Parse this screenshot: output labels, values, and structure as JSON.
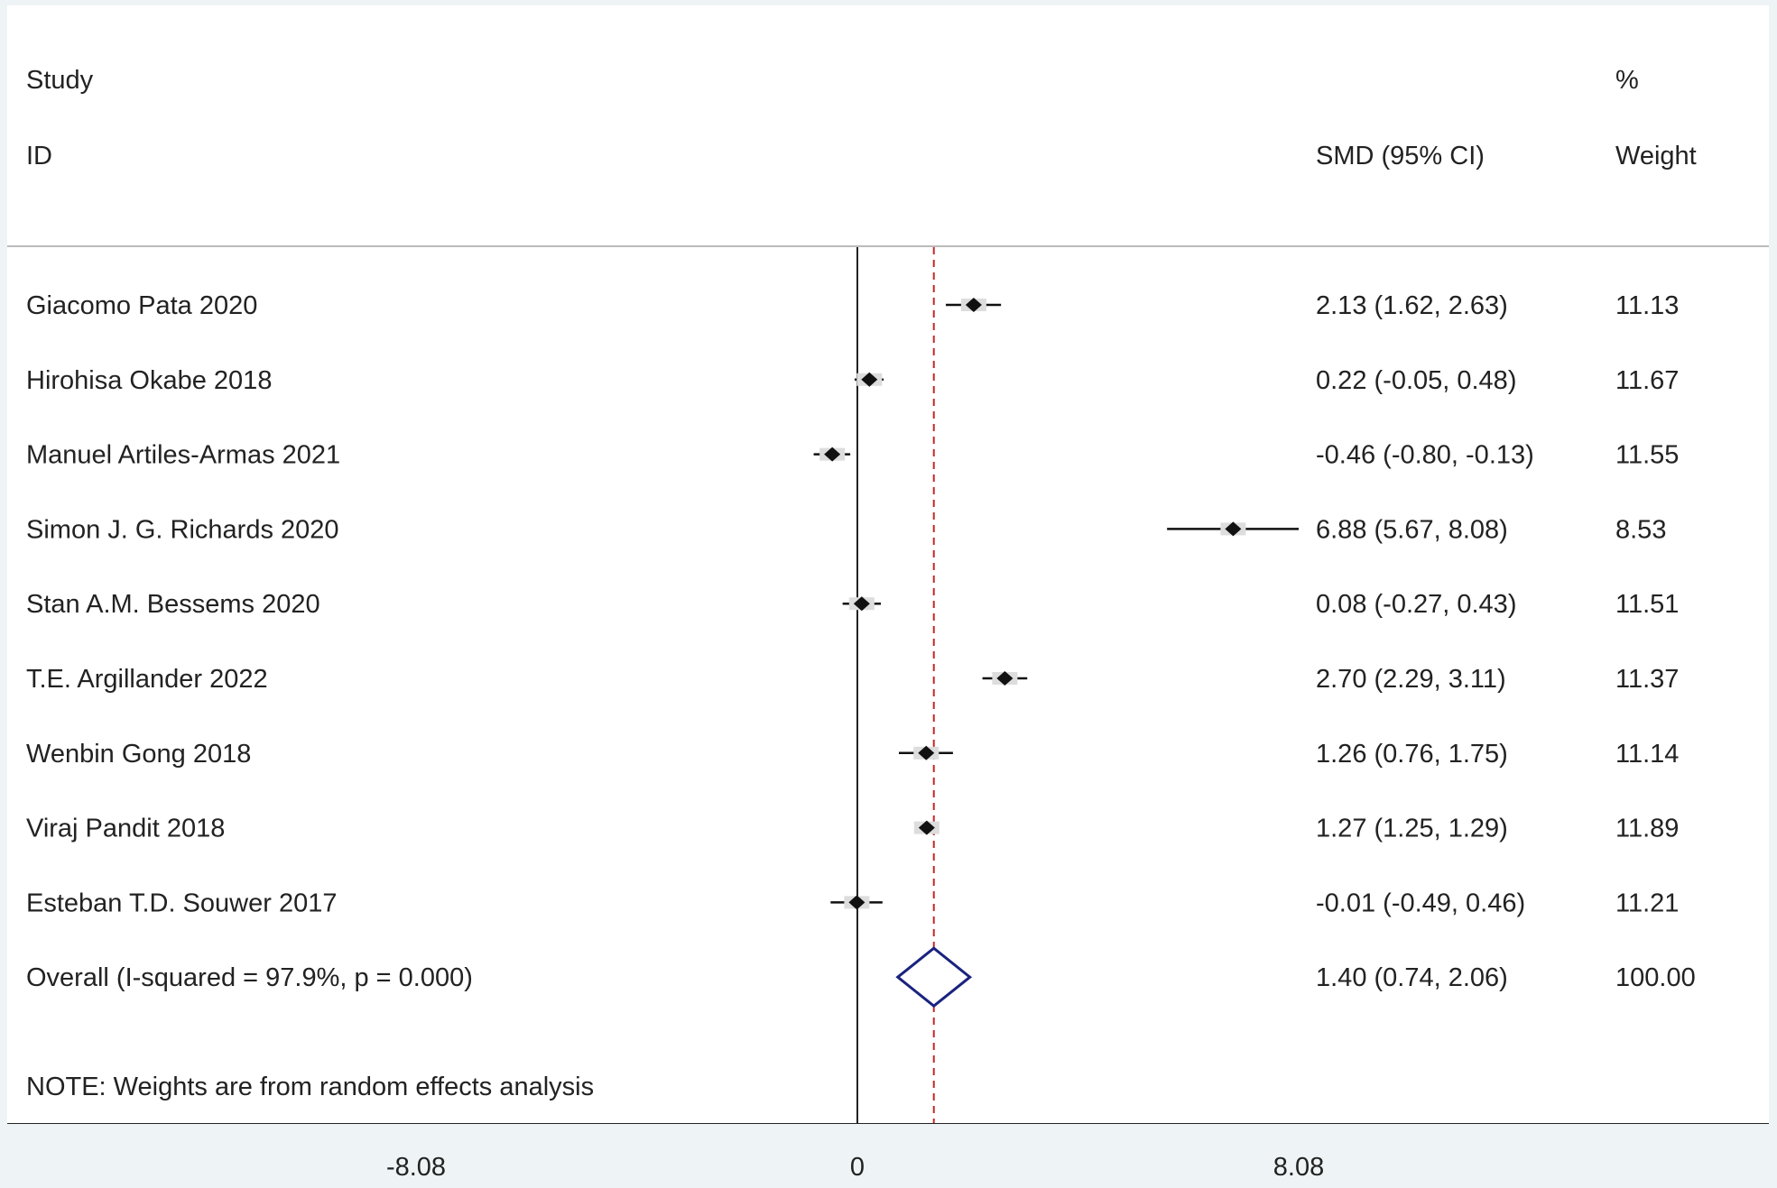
{
  "chart_data": {
    "type": "forest",
    "header": {
      "study_line1": "Study",
      "study_line2": "ID",
      "estimate": "SMD (95% CI)",
      "weight_line1": "%",
      "weight_line2": "Weight"
    },
    "studies": [
      {
        "label": "Giacomo Pata 2020",
        "est": 2.13,
        "lo": 1.62,
        "hi": 2.63,
        "ci_text": "2.13 (1.62, 2.63)",
        "weight": "11.13"
      },
      {
        "label": "Hirohisa Okabe 2018",
        "est": 0.22,
        "lo": -0.05,
        "hi": 0.48,
        "ci_text": "0.22 (-0.05, 0.48)",
        "weight": "11.67"
      },
      {
        "label": "Manuel Artiles-Armas 2021",
        "est": -0.46,
        "lo": -0.8,
        "hi": -0.13,
        "ci_text": "-0.46 (-0.80, -0.13)",
        "weight": "11.55"
      },
      {
        "label": "Simon J. G. Richards 2020",
        "est": 6.88,
        "lo": 5.67,
        "hi": 8.08,
        "ci_text": "6.88 (5.67, 8.08)",
        "weight": "8.53"
      },
      {
        "label": "Stan A.M. Bessems 2020",
        "est": 0.08,
        "lo": -0.27,
        "hi": 0.43,
        "ci_text": "0.08 (-0.27, 0.43)",
        "weight": "11.51"
      },
      {
        "label": "T.E. Argillander 2022",
        "est": 2.7,
        "lo": 2.29,
        "hi": 3.11,
        "ci_text": "2.70 (2.29, 3.11)",
        "weight": "11.37"
      },
      {
        "label": "Wenbin Gong 2018",
        "est": 1.26,
        "lo": 0.76,
        "hi": 1.75,
        "ci_text": "1.26 (0.76, 1.75)",
        "weight": "11.14"
      },
      {
        "label": "Viraj Pandit 2018",
        "est": 1.27,
        "lo": 1.25,
        "hi": 1.29,
        "ci_text": "1.27 (1.25, 1.29)",
        "weight": "11.89"
      },
      {
        "label": "Esteban T.D. Souwer 2017",
        "est": -0.01,
        "lo": -0.49,
        "hi": 0.46,
        "ci_text": "-0.01 (-0.49, 0.46)",
        "weight": "11.21"
      }
    ],
    "overall": {
      "label": "Overall  (I-squared = 97.9%, p = 0.000)",
      "est": 1.4,
      "lo": 0.74,
      "hi": 2.06,
      "ci_text": "1.40 (0.74, 2.06)",
      "weight": "100.00"
    },
    "note": "NOTE: Weights are from random effects analysis",
    "x_ticks": [
      {
        "value": -8.08,
        "label": "-8.08"
      },
      {
        "value": 0,
        "label": "0"
      },
      {
        "value": 8.08,
        "label": "8.08"
      }
    ],
    "xlim": [
      -8.08,
      8.08
    ],
    "null_line": 0,
    "colors": {
      "point": "#111111",
      "ci_line": "#111111",
      "overall_diamond": "#1a237e",
      "overall_line": "#c62828",
      "axis": "#222222"
    }
  }
}
